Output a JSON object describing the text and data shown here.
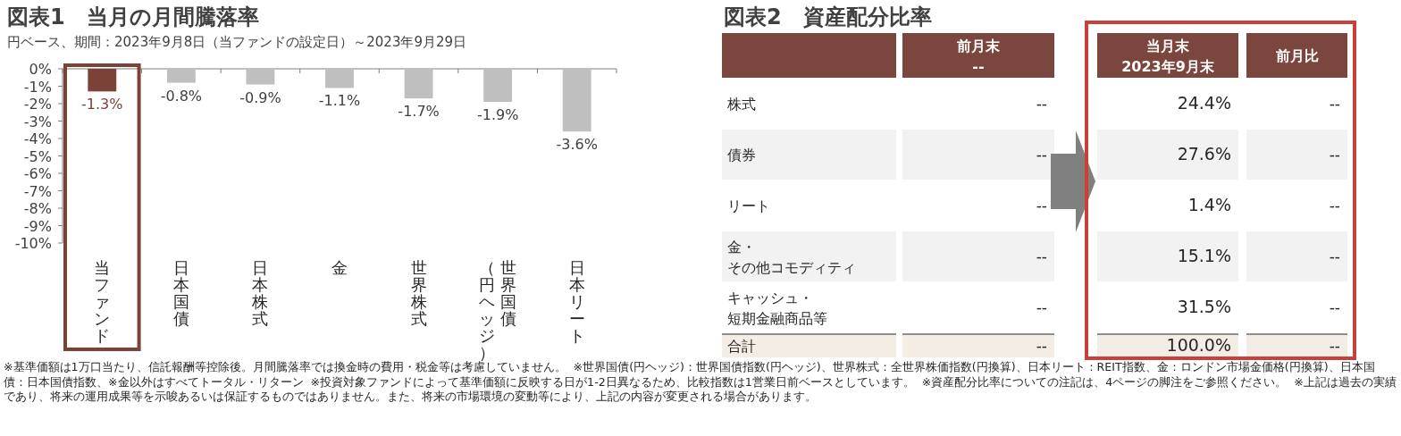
{
  "chart_data": [
    {
      "type": "bar",
      "title": "図表1　当月の月間騰落率",
      "subtitle": "円ベース、期間：2023年9月8日（当ファンドの設定日）～2023年9月29日",
      "categories": [
        "当ファンド",
        "日本国債",
        "日本株式",
        "金",
        "世界株式",
        "世界国債（円ヘッジ）",
        "日本リート"
      ],
      "values": [
        -1.3,
        -0.8,
        -0.9,
        -1.1,
        -1.7,
        -1.9,
        -3.6
      ],
      "value_labels": [
        "-1.3%",
        "-0.8%",
        "-0.9%",
        "-1.1%",
        "-1.7%",
        "-1.9%",
        "-3.6%"
      ],
      "colors": [
        "#7b4238",
        "#bfbfbf",
        "#bfbfbf",
        "#bfbfbf",
        "#bfbfbf",
        "#bfbfbf",
        "#bfbfbf"
      ],
      "ylim": [
        -10,
        0
      ],
      "yticks": [
        {
          "value": 0,
          "label": "0%"
        },
        {
          "value": -1,
          "label": "-1%"
        },
        {
          "value": -2,
          "label": "-2%"
        },
        {
          "value": -3,
          "label": "-3%"
        },
        {
          "value": -4,
          "label": "-4%"
        },
        {
          "value": -5,
          "label": "-5%"
        },
        {
          "value": -6,
          "label": "-6%"
        },
        {
          "value": -7,
          "label": "-7%"
        },
        {
          "value": -8,
          "label": "-8%"
        },
        {
          "value": -9,
          "label": "-9%"
        },
        {
          "value": -10,
          "label": "-10%"
        }
      ],
      "annotations": [
        "※基準価額は1万口当たり、信託報酬等控除後。月間騰落率では換金時の費用・税金等は考慮していません。",
        "※世界国債(円ヘッジ)：世界国債指数(円ヘッジ)、世界株式：全世界株価指数(円換算)、日本リート：REIT指数、金：ロンドン市場金価格(円換算)、日本国債：日本国債指数、※金以外はすべてトータル・リターン",
        "※投資対象ファンドによって基準価額に反映する日が1-2日異なるため、比較指数は1営業日前ベースとしています。",
        "※資産配分比率についての注記は、4ページの脚注をご参照ください。",
        "※上記は過去の実績であり、将来の運用成果等を示唆あるいは保証するものではありません。また、将来の市場環境の変動等により、上記の内容が変更される場合があります。"
      ]
    },
    {
      "type": "other",
      "title": "図表2　資産配分比率",
      "annotations": [
        "前月末\n--",
        "当月末\n2023年9月末",
        "前月比",
        "株式",
        "--",
        "24.4%",
        "--",
        "債券",
        "--",
        "27.6%",
        "--",
        "リート",
        "--",
        "1.4%",
        "--",
        "金・その他コモディティ",
        "--",
        "15.1%",
        "--",
        "キャッシュ・短期金融商品等",
        "--",
        "31.5%",
        "--",
        "合計",
        "--",
        "100.0%",
        "--"
      ]
    }
  ]
}
